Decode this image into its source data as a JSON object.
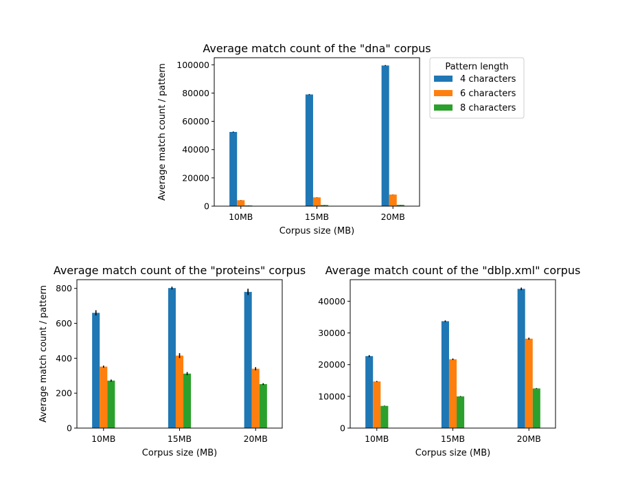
{
  "legend": {
    "title": "Pattern length",
    "entries": [
      "4 characters",
      "6 characters",
      "8 characters"
    ]
  },
  "colors": [
    "#1f77b4",
    "#ff7f0e",
    "#2ca02c"
  ],
  "chart_data": [
    {
      "type": "bar",
      "title": "Average match count of the \"dna\" corpus",
      "xlabel": "Corpus size (MB)",
      "ylabel": "Average match count / pattern",
      "categories": [
        "10MB",
        "15MB",
        "20MB"
      ],
      "ylim": [
        0,
        105000
      ],
      "yticks": [
        0,
        20000,
        40000,
        60000,
        80000,
        100000
      ],
      "series": [
        {
          "name": "4 characters",
          "values": [
            52500,
            79000,
            99500
          ],
          "errors": [
            300,
            300,
            300
          ]
        },
        {
          "name": "6 characters",
          "values": [
            4200,
            6200,
            8200
          ],
          "errors": [
            100,
            100,
            100
          ]
        },
        {
          "name": "8 characters",
          "values": [
            500,
            800,
            900
          ],
          "errors": [
            50,
            50,
            50
          ]
        }
      ],
      "legend": "outside-right"
    },
    {
      "type": "bar",
      "title": "Average match count of the \"proteins\" corpus",
      "xlabel": "Corpus size (MB)",
      "ylabel": "Average match count / pattern",
      "categories": [
        "10MB",
        "15MB",
        "20MB"
      ],
      "ylim": [
        0,
        850
      ],
      "yticks": [
        0,
        200,
        400,
        600,
        800
      ],
      "series": [
        {
          "name": "4 characters",
          "values": [
            660,
            802,
            780
          ],
          "errors": [
            15,
            8,
            18
          ]
        },
        {
          "name": "6 characters",
          "values": [
            352,
            415,
            340
          ],
          "errors": [
            6,
            14,
            9
          ]
        },
        {
          "name": "8 characters",
          "values": [
            272,
            312,
            252
          ],
          "errors": [
            6,
            9,
            5
          ]
        }
      ]
    },
    {
      "type": "bar",
      "title": "Average match count of the \"dblp.xml\" corpus",
      "xlabel": "Corpus size (MB)",
      "ylabel": "",
      "categories": [
        "10MB",
        "15MB",
        "20MB"
      ],
      "ylim": [
        0,
        46800
      ],
      "yticks": [
        0,
        10000,
        20000,
        30000,
        40000
      ],
      "series": [
        {
          "name": "4 characters",
          "values": [
            22700,
            33700,
            43900
          ],
          "errors": [
            300,
            250,
            400
          ]
        },
        {
          "name": "6 characters",
          "values": [
            14700,
            21700,
            28200
          ],
          "errors": [
            150,
            250,
            300
          ]
        },
        {
          "name": "8 characters",
          "values": [
            7000,
            10000,
            12500
          ],
          "errors": [
            80,
            100,
            120
          ]
        }
      ]
    }
  ]
}
